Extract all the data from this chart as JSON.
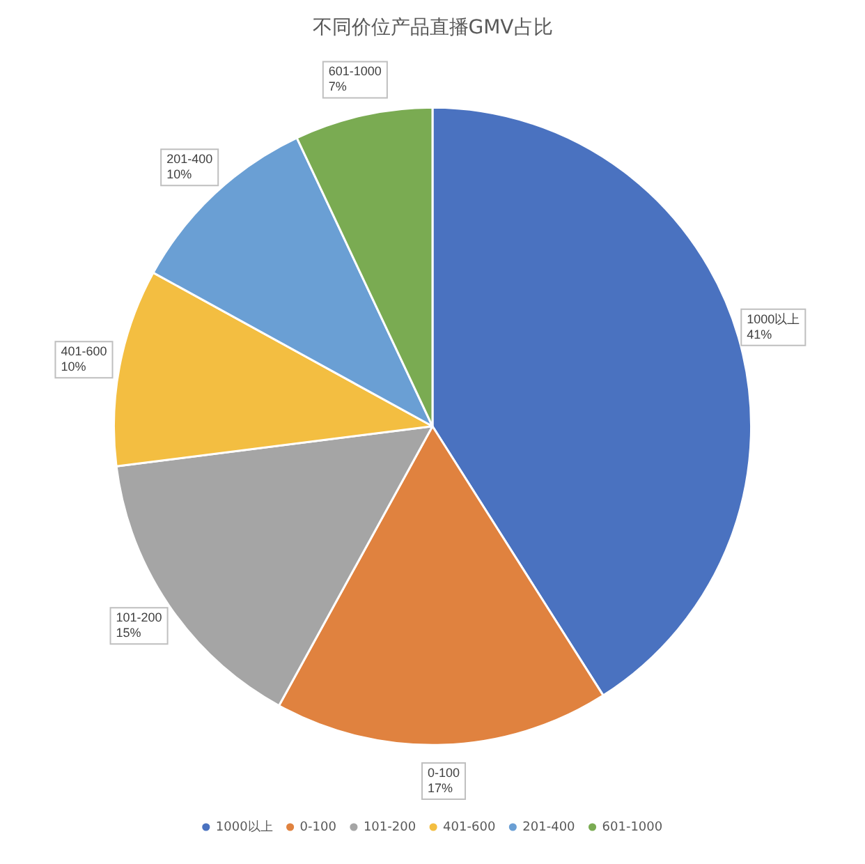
{
  "chart_data": {
    "type": "pie",
    "title": "不同价位产品直播GMV占比",
    "categories": [
      "1000以上",
      "0-100",
      "101-200",
      "401-600",
      "201-400",
      "601-1000"
    ],
    "values": [
      41,
      17,
      15,
      10,
      10,
      7
    ],
    "value_labels": [
      "41%",
      "17%",
      "15%",
      "10%",
      "10%",
      "7%"
    ],
    "colors": [
      "#4a72c0",
      "#e0823f",
      "#a5a5a5",
      "#f3be41",
      "#6a9fd4",
      "#7aab52"
    ],
    "legend": "bottom"
  }
}
